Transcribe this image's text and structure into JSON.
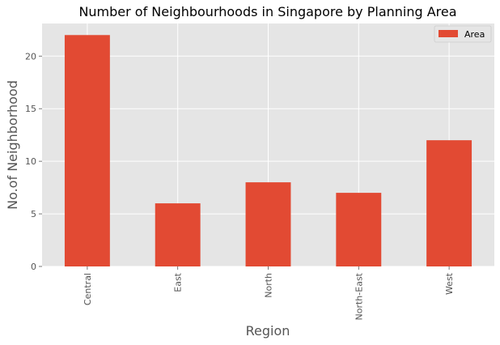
{
  "chart_data": {
    "type": "bar",
    "title": "Number of Neighbourhoods in Singapore by Planning Area",
    "xlabel": "Region",
    "ylabel": "No.of Neighborhood",
    "categories": [
      "Central",
      "East",
      "North",
      "North-East",
      "West"
    ],
    "series": [
      {
        "name": "Area",
        "values": [
          22,
          6,
          8,
          7,
          12
        ],
        "color": "#E24A33"
      }
    ],
    "ylim": [
      0,
      23.1
    ],
    "yticks": [
      0,
      5,
      10,
      15,
      20
    ],
    "grid": true,
    "legend_position": "top-right",
    "background_color": "#E5E5E5",
    "grid_color": "#FFFFFF"
  }
}
